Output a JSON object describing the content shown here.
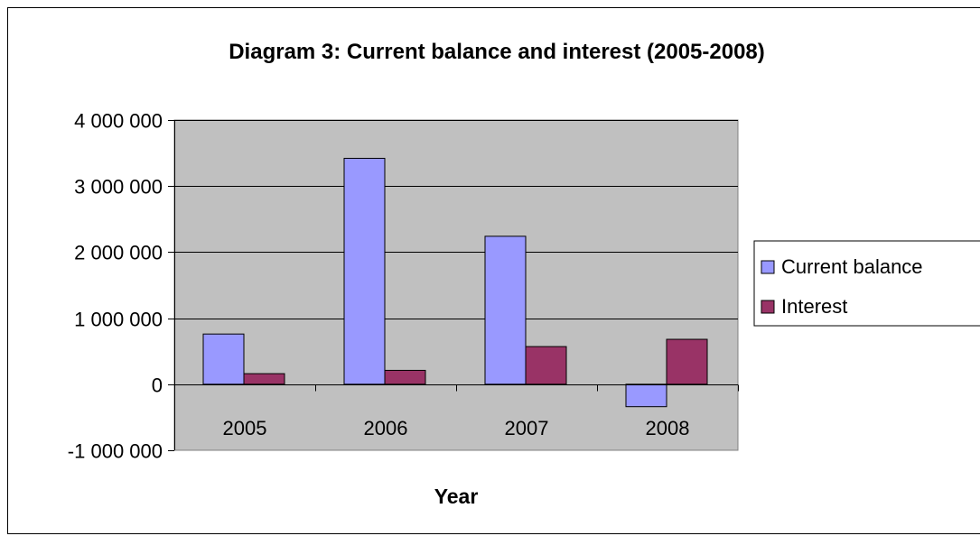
{
  "chart_data": {
    "type": "bar",
    "title": "Diagram 3: Current balance and interest (2005-2008)",
    "xlabel": "Year",
    "ylabel": "",
    "categories": [
      "2005",
      "2006",
      "2007",
      "2008"
    ],
    "series": [
      {
        "name": "Current balance",
        "values": [
          760000,
          3420000,
          2240000,
          -340000
        ]
      },
      {
        "name": "Interest",
        "values": [
          160000,
          210000,
          570000,
          680000
        ]
      }
    ],
    "ylim": [
      -1000000,
      4000000
    ],
    "yticks": [
      -1000000,
      0,
      1000000,
      2000000,
      3000000,
      4000000
    ],
    "ytick_labels": [
      "-1 000 000",
      "0",
      "1 000 000",
      "2 000 000",
      "3 000 000",
      "4 000 000"
    ],
    "grid": true,
    "legend_position": "right",
    "colors": {
      "plot_background": "#c0c0c0",
      "Current balance": "#9999ff",
      "Interest": "#993366"
    }
  }
}
